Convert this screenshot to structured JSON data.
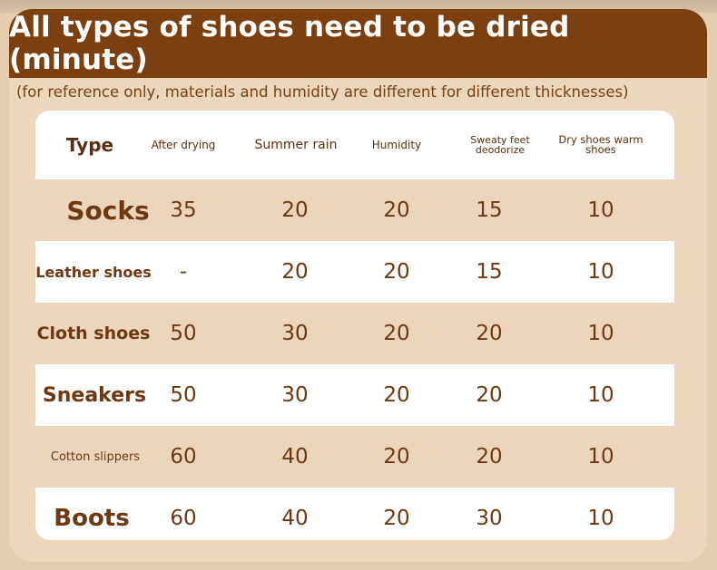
{
  "title": "All types of shoes need to be dried (minute)",
  "note": "(for reference only, materials and humidity are different for different thicknesses)",
  "table": {
    "headers": [
      "Type",
      "After drying",
      "Summer rain",
      "Humidity",
      "Sweaty feet deodorize",
      "Dry shoes warm shoes"
    ],
    "rows": [
      {
        "type": "Socks",
        "values": [
          "35",
          "20",
          "20",
          "15",
          "10"
        ]
      },
      {
        "type": "Leather shoes",
        "values": [
          "-",
          "20",
          "20",
          "15",
          "10"
        ]
      },
      {
        "type": "Cloth shoes",
        "values": [
          "50",
          "30",
          "20",
          "20",
          "10"
        ]
      },
      {
        "type": "Sneakers",
        "values": [
          "50",
          "30",
          "20",
          "20",
          "10"
        ]
      },
      {
        "type": "Cotton slippers",
        "values": [
          "60",
          "40",
          "20",
          "20",
          "10"
        ]
      },
      {
        "type": "Boots",
        "values": [
          "60",
          "40",
          "20",
          "30",
          "10"
        ]
      }
    ]
  },
  "colors": {
    "title_bar": "#7c3f10",
    "text_brown": "#6e3812",
    "row_shade": "#edd5bb",
    "background": "#e6cdb0"
  }
}
